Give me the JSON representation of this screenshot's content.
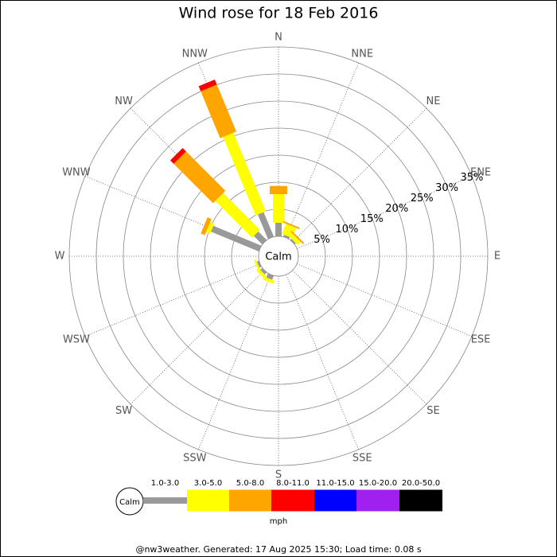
{
  "chart_data": {
    "type": "windrose",
    "title": "Wind rose for 18 Feb 2016",
    "center_label": "Calm",
    "unit": "mph",
    "footer": "@nw3weather. Generated: 17 Aug 2025 15:30; Load time: 0.08 s",
    "categories": [
      "N",
      "NNE",
      "NE",
      "ENE",
      "E",
      "ESE",
      "SE",
      "SSE",
      "S",
      "SSW",
      "SW",
      "WSW",
      "W",
      "WNW",
      "NW",
      "NNW"
    ],
    "rlim": [
      0,
      35
    ],
    "rticks": [
      {
        "value": 5,
        "label": "5%"
      },
      {
        "value": 10,
        "label": "10%"
      },
      {
        "value": 15,
        "label": "15%"
      },
      {
        "value": 20,
        "label": "20%"
      },
      {
        "value": 25,
        "label": "25%"
      },
      {
        "value": 30,
        "label": "30%"
      },
      {
        "value": 35,
        "label": "35%"
      }
    ],
    "series": [
      {
        "name": "1.0-3.0",
        "color": "#999999",
        "values": [
          2.5,
          0.4,
          0.3,
          0,
          0,
          0,
          0,
          0,
          0,
          0.8,
          0.5,
          0.4,
          0,
          9.6,
          2.2,
          4.9
        ]
      },
      {
        "name": "3.0-5.0",
        "color": "#ffff00",
        "values": [
          5.3,
          2.0,
          0.8,
          0,
          0,
          0,
          0,
          0,
          0,
          0.6,
          0.6,
          0.4,
          0,
          0.8,
          9.6,
          15.7
        ]
      },
      {
        "name": "5.0-8.0",
        "color": "#ffa500",
        "values": [
          1.5,
          0.3,
          0.3,
          0,
          0,
          0,
          0,
          0,
          0,
          0,
          0,
          0,
          0,
          0.8,
          10.3,
          9.4
        ]
      },
      {
        "name": "8.0-11.0",
        "color": "#ff0000",
        "values": [
          0,
          0,
          0,
          0,
          0,
          0,
          0,
          0,
          0,
          0,
          0,
          0,
          0,
          0,
          0.9,
          1.0
        ]
      },
      {
        "name": "11.0-15.0",
        "color": "#0000ff",
        "values": [
          0,
          0,
          0,
          0,
          0,
          0,
          0,
          0,
          0,
          0,
          0,
          0,
          0,
          0,
          0,
          0
        ]
      },
      {
        "name": "15.0-20.0",
        "color": "#a020f0",
        "values": [
          0,
          0,
          0,
          0,
          0,
          0,
          0,
          0,
          0,
          0,
          0,
          0,
          0,
          0,
          0,
          0
        ]
      },
      {
        "name": "20.0-50.0",
        "color": "#000000",
        "values": [
          0,
          0,
          0,
          0,
          0,
          0,
          0,
          0,
          0,
          0,
          0,
          0,
          0,
          0,
          0,
          0
        ]
      }
    ]
  }
}
